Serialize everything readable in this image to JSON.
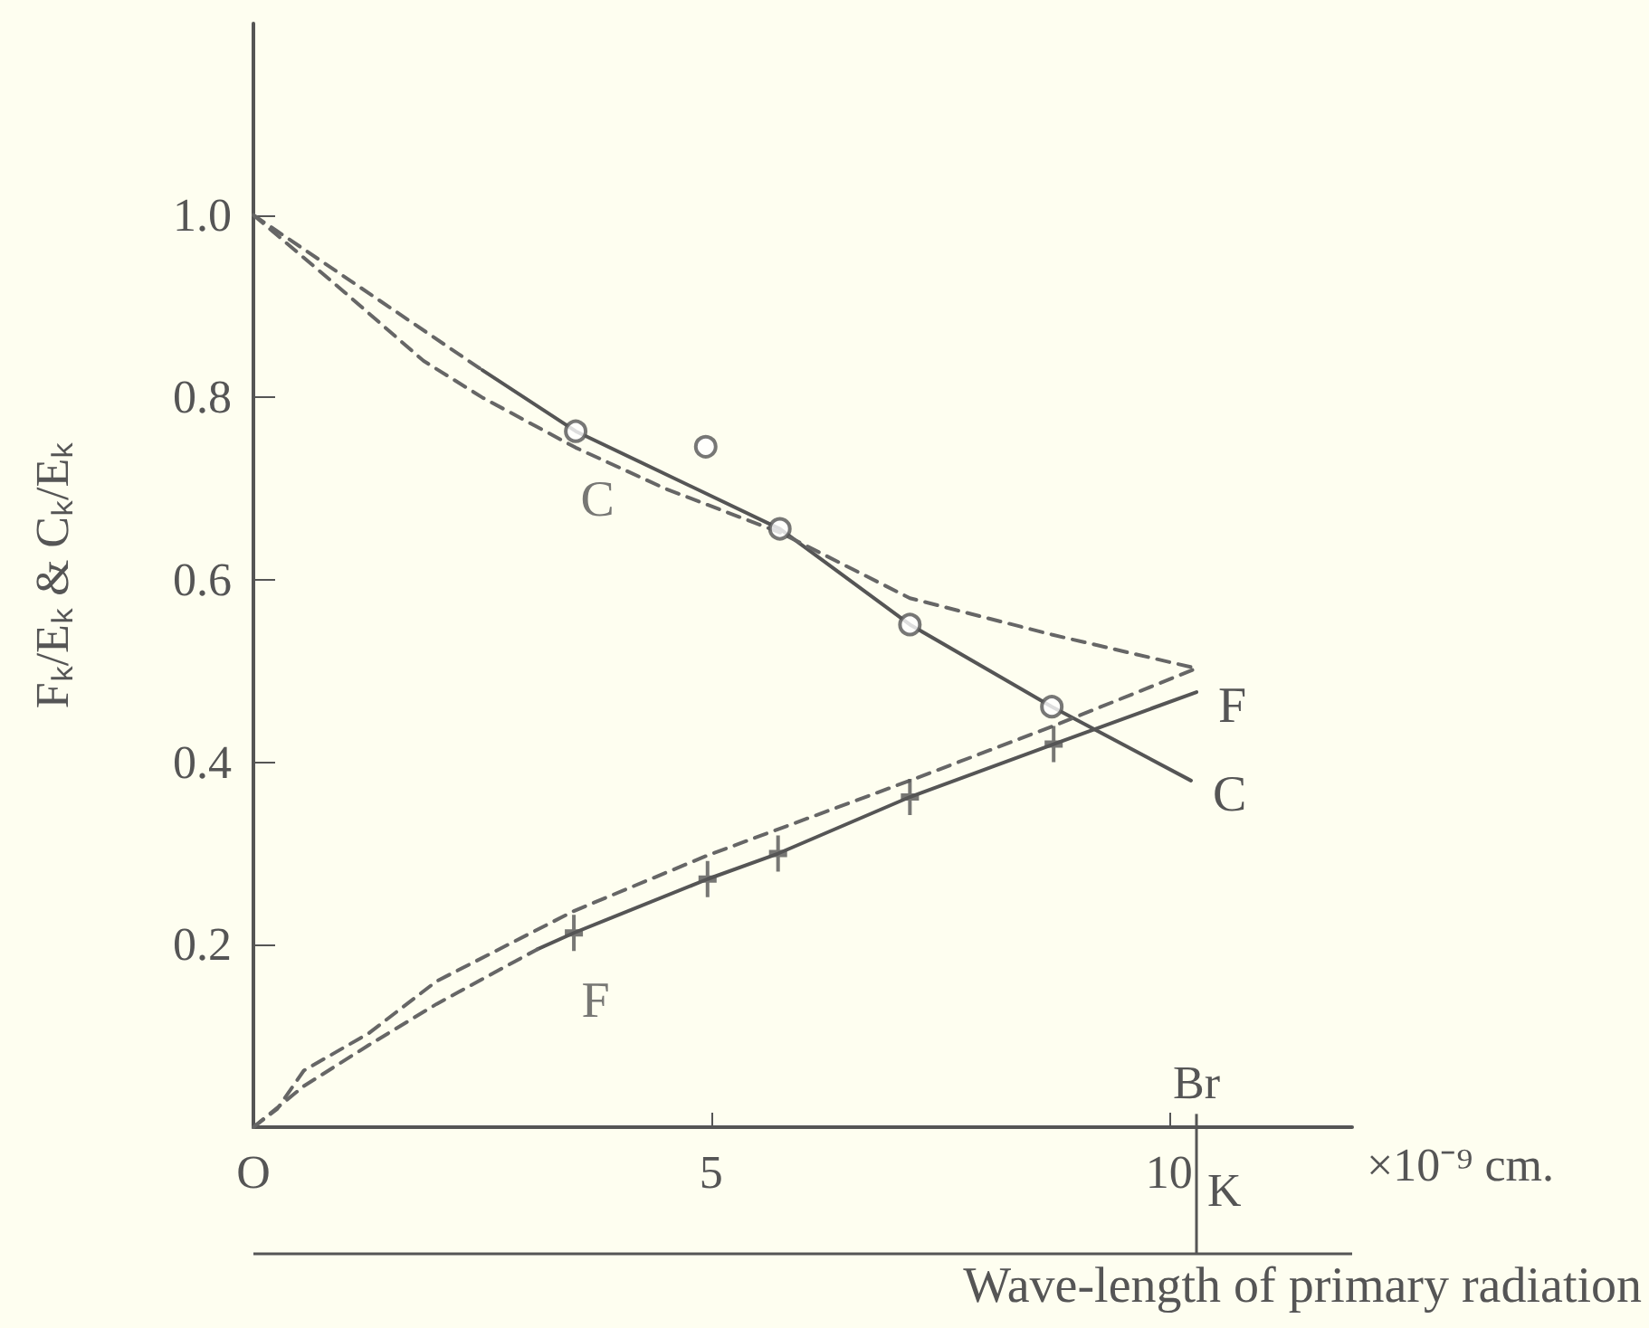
{
  "chart_data": {
    "type": "line",
    "xlabel": "Wave-length of primary radiation",
    "ylabel": "Fₖ/Eₖ & Cₖ/Eₖ",
    "xlim": [
      0,
      12
    ],
    "ylim": [
      0,
      1.21
    ],
    "xticks": [
      {
        "value": 0,
        "label": "O"
      },
      5,
      10
    ],
    "yticks": [
      0.2,
      0.4,
      0.6,
      0.8,
      {
        "value": 1.0,
        "label": "1.0"
      }
    ],
    "grid": false,
    "legend": false,
    "series": [
      {
        "name": "C",
        "color": "#555555",
        "line_style": "solid",
        "marker": "none",
        "x": [
          2.5,
          3.52,
          5.75,
          7.17,
          8.72,
          10.24
        ],
        "values": [
          0.83,
          0.763,
          0.656,
          0.551,
          0.461,
          0.38
        ]
      },
      {
        "type": "scatter",
        "color": "#555555",
        "marker": "circle",
        "x": [
          3.52,
          4.94,
          5.75,
          7.17,
          8.72
        ],
        "values": [
          0.763,
          0.746,
          0.656,
          0.551,
          0.461
        ]
      },
      {
        "name": "F",
        "color": "#555555",
        "line_style": "solid",
        "marker": "none",
        "x": [
          3.1,
          3.5,
          4.96,
          5.73,
          7.17,
          8.74,
          10.3
        ],
        "values": [
          0.195,
          0.213,
          0.272,
          0.3,
          0.362,
          0.42,
          0.477
        ]
      },
      {
        "type": "scatter",
        "color": "#555555",
        "marker": "cross",
        "x": [
          3.5,
          4.96,
          5.73,
          7.17,
          8.74
        ],
        "values": [
          0.213,
          0.272,
          0.3,
          0.362,
          0.42
        ]
      },
      {
        "type": "line",
        "color": "#666666",
        "line_style": "dashed",
        "marker": "none",
        "x": [
          0,
          2.5
        ],
        "values": [
          1.0,
          0.83
        ]
      },
      {
        "type": "line",
        "color": "#666666",
        "line_style": "dashed",
        "marker": "none",
        "x": [
          0,
          1,
          1.86,
          2.5,
          3.52,
          4.5,
          5.75,
          7.17,
          8.72,
          10.3
        ],
        "values": [
          1.0,
          0.915,
          0.84,
          0.8,
          0.745,
          0.7,
          0.652,
          0.58,
          0.54,
          0.503
        ]
      },
      {
        "type": "line",
        "color": "#666666",
        "line_style": "dashed",
        "marker": "none",
        "x": [
          0,
          0.26,
          0.55,
          1.26,
          2,
          3.5,
          4.96,
          7.17,
          8.74,
          10.3
        ],
        "values": [
          0,
          0.02,
          0.062,
          0.103,
          0.16,
          0.237,
          0.298,
          0.38,
          0.44,
          0.503
        ]
      },
      {
        "type": "line",
        "color": "#666666",
        "line_style": "dashed",
        "marker": "none",
        "x": [
          0,
          0.55,
          1.26,
          2,
          3.1
        ],
        "values": [
          0,
          0.045,
          0.09,
          0.135,
          0.195
        ]
      }
    ],
    "ref_lines": [
      {
        "axis": "x",
        "value": 10.3,
        "label": "Br",
        "color": "#555555",
        "line_style": "solid"
      }
    ],
    "annotations": [
      {
        "text": "C",
        "x": 3.52,
        "y": 0.763
      },
      {
        "text": "F",
        "x": 3.5,
        "y": 0.213
      },
      "×10⁻⁹ cm.",
      "K"
    ]
  }
}
